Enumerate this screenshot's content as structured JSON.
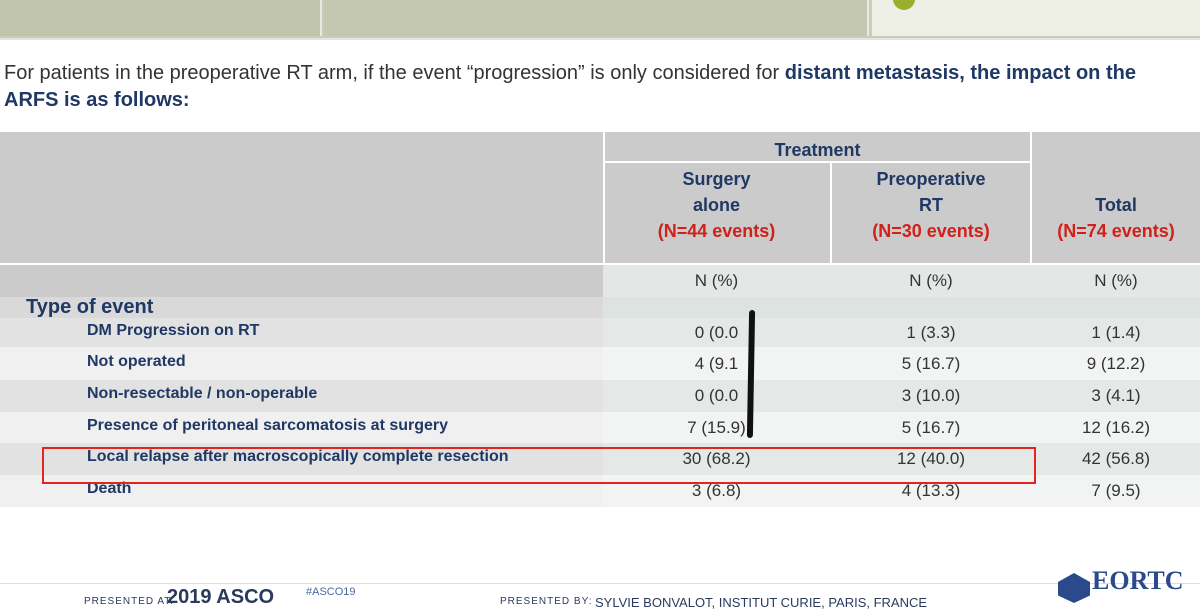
{
  "intro": {
    "text": "For patients in the preoperative RT arm, if the event “progression” is only considered for ",
    "bold": "distant metastasis, the impact on the ARFS is as follows:"
  },
  "table": {
    "group_header": "Treatment",
    "columns": [
      {
        "name": [
          "Surgery",
          "alone"
        ],
        "n": "(N=44 events)"
      },
      {
        "name": [
          "Preoperative",
          "RT"
        ],
        "n": "(N=30 events)"
      },
      {
        "name": [
          "Total"
        ],
        "n": "(N=74 events)"
      }
    ],
    "units": [
      "N (%)",
      "N (%)",
      "N (%)"
    ],
    "section": "Type of event",
    "rows": [
      [
        "DM Progression on RT",
        "0 (0.0",
        "1 (3.3)",
        "1 (1.4)"
      ],
      [
        "Not operated",
        "4 (9.1",
        "5 (16.7)",
        "9 (12.2)"
      ],
      [
        "Non-resectable / non-operable",
        "0 (0.0",
        "3 (10.0)",
        "3 (4.1)"
      ],
      [
        "Presence of peritoneal sarcomatosis at surgery",
        "7 (15.9)",
        "5 (16.7)",
        "12 (16.2)"
      ],
      [
        "Local relapse after macroscopically complete resection",
        "30 (68.2)",
        "12 (40.0)",
        "42 (56.8)"
      ],
      [
        "Death",
        "3 (6.8)",
        "4 (13.3)",
        "7 (9.5)"
      ]
    ]
  },
  "footer": {
    "presented_at": "PRESENTED AT:",
    "meeting": "2019 ASCO",
    "hashtag": "#ASCO19",
    "presented_by": "PRESENTED BY:",
    "presenter": "SYLVIE BONVALOT, INSTITUT CURIE, PARIS, FRANCE",
    "logo": "EORTC"
  }
}
